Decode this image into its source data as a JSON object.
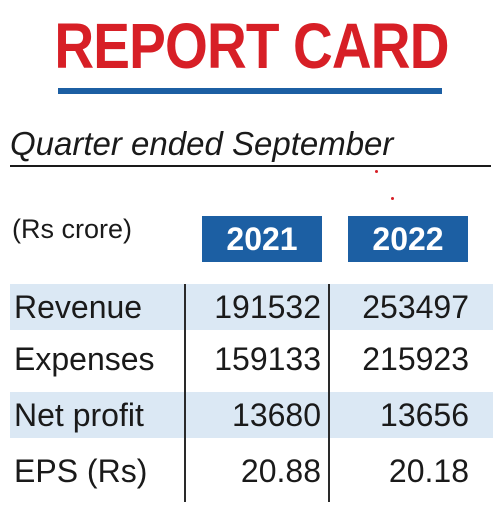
{
  "title": "REPORT CARD",
  "subtitle": "Quarter ended September",
  "units": "(Rs crore)",
  "years": [
    "2021",
    "2022"
  ],
  "rows": [
    {
      "label": "Revenue",
      "v2021": "191532",
      "v2022": "253497"
    },
    {
      "label": "Expenses",
      "v2021": "159133",
      "v2022": "215923"
    },
    {
      "label": "Net profit",
      "v2021": "13680",
      "v2022": "13656"
    },
    {
      "label": "EPS (Rs)",
      "v2021": "20.88",
      "v2022": "20.18"
    }
  ],
  "colors": {
    "title": "#d71f26",
    "accent": "#1c5fa3",
    "row_shade": "#dbe8f4"
  }
}
